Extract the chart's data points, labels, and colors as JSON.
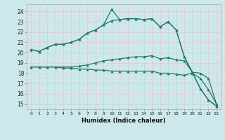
{
  "xlabel": "Humidex (Indice chaleur)",
  "bg_color": "#cce8ea",
  "grid_color": "#e8c8c8",
  "line_color": "#1e7b6e",
  "xlim": [
    -0.5,
    23.5
  ],
  "ylim": [
    14.5,
    24.7
  ],
  "xticks": [
    0,
    1,
    2,
    3,
    4,
    5,
    6,
    7,
    8,
    9,
    10,
    11,
    12,
    13,
    14,
    15,
    16,
    17,
    18,
    19,
    20,
    21,
    22,
    23
  ],
  "yticks": [
    15,
    16,
    17,
    18,
    19,
    20,
    21,
    22,
    23,
    24
  ],
  "series1_y": [
    20.3,
    20.1,
    20.5,
    20.8,
    20.8,
    21.0,
    21.3,
    21.9,
    22.2,
    22.7,
    24.2,
    23.2,
    23.3,
    23.3,
    23.2,
    23.3,
    22.5,
    23.0,
    22.2,
    19.6,
    18.1,
    16.5,
    15.4,
    14.8
  ],
  "series2_y": [
    20.3,
    20.1,
    20.5,
    20.8,
    20.8,
    21.0,
    21.3,
    21.9,
    22.2,
    22.7,
    23.1,
    23.2,
    23.3,
    23.3,
    23.2,
    23.3,
    22.5,
    23.0,
    22.2,
    19.6,
    18.1,
    16.5,
    15.4,
    14.8
  ],
  "series3_y": [
    18.6,
    18.6,
    18.6,
    18.6,
    18.6,
    18.6,
    18.7,
    18.8,
    19.0,
    19.2,
    19.3,
    19.4,
    19.5,
    19.6,
    19.6,
    19.7,
    19.4,
    19.5,
    19.3,
    19.2,
    18.1,
    18.0,
    17.5,
    15.0
  ],
  "series4_y": [
    18.6,
    18.6,
    18.6,
    18.6,
    18.5,
    18.5,
    18.4,
    18.4,
    18.3,
    18.3,
    18.2,
    18.2,
    18.2,
    18.2,
    18.2,
    18.2,
    18.0,
    18.0,
    17.9,
    17.8,
    18.0,
    17.5,
    16.4,
    15.0
  ]
}
